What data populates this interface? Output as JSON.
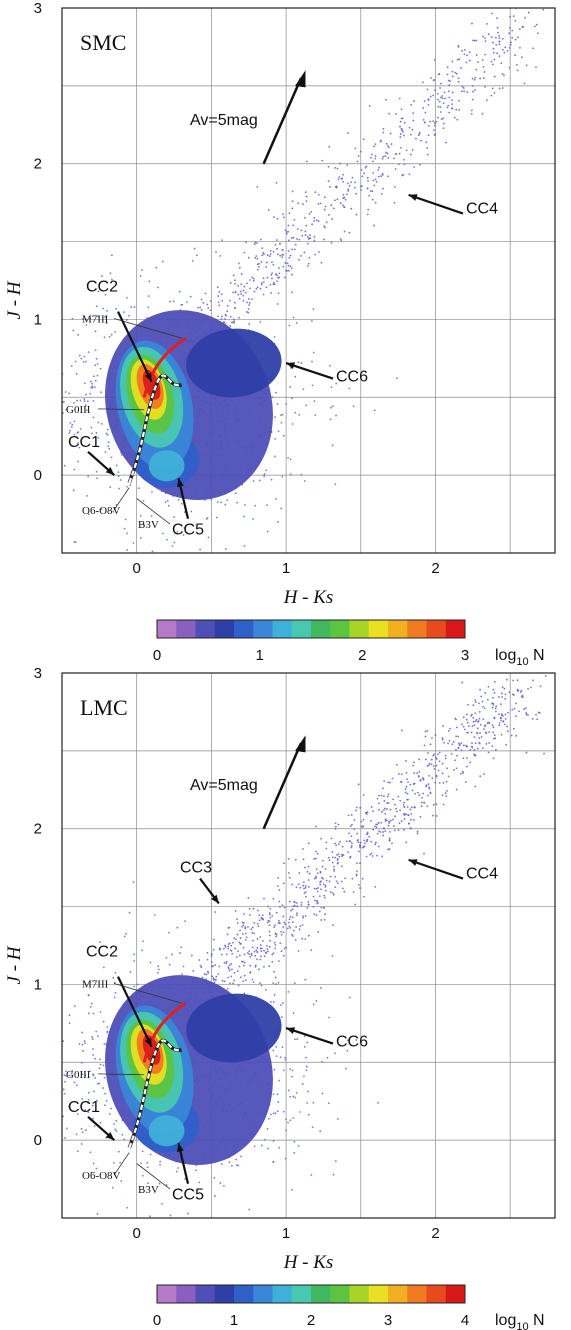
{
  "chart_data": [
    {
      "type": "heatmap",
      "panel_label": "SMC",
      "xlabel": "H - Ks",
      "ylabel": "J - H",
      "xlim": [
        -0.5,
        2.8
      ],
      "ylim": [
        -0.5,
        3.0
      ],
      "xticks": [
        "0",
        "1",
        "2"
      ],
      "yticks": [
        "0",
        "1",
        "2",
        "3"
      ],
      "grid": true,
      "colorbar": {
        "label": "log",
        "label_sub": "10",
        "label_suffix": " N",
        "min": 0,
        "max": 3,
        "ticks": [
          "0",
          "1",
          "2",
          "3"
        ],
        "colors": [
          "#b57ac8",
          "#8a5fc0",
          "#4e4fb7",
          "#2f3fa8",
          "#2f5fc8",
          "#3a86d8",
          "#3fb0d8",
          "#48c8b0",
          "#3fb860",
          "#5cc440",
          "#a8d428",
          "#e8e020",
          "#f2b020",
          "#f07a20",
          "#e84a20",
          "#d81818"
        ]
      },
      "arrow_text": "Av=5mag",
      "annotations": [
        "CC1",
        "CC2",
        "CC4",
        "CC5",
        "CC6"
      ],
      "spectral_labels": [
        "M7III",
        "G0III",
        "O6-O8V",
        "B3V"
      ],
      "density_peaks": [
        {
          "x": 0.1,
          "y": 0.55,
          "log10N": 3.0
        },
        {
          "x": 0.05,
          "y": 0.3,
          "log10N": 2.5
        },
        {
          "x": 0.2,
          "y": 0.05,
          "log10N": 1.8
        },
        {
          "x": 0.6,
          "y": 0.75,
          "log10N": 1.2
        }
      ]
    },
    {
      "type": "heatmap",
      "panel_label": "LMC",
      "xlabel": "H - Ks",
      "ylabel": "J - H",
      "xlim": [
        -0.5,
        2.8
      ],
      "ylim": [
        -0.5,
        3.0
      ],
      "xticks": [
        "0",
        "1",
        "2"
      ],
      "yticks": [
        "0",
        "1",
        "2",
        "3"
      ],
      "grid": true,
      "colorbar": {
        "label": "log",
        "label_sub": "10",
        "label_suffix": " N",
        "min": 0,
        "max": 4,
        "ticks": [
          "0",
          "1",
          "2",
          "3",
          "4"
        ],
        "colors": [
          "#b57ac8",
          "#8a5fc0",
          "#4e4fb7",
          "#2f3fa8",
          "#2f5fc8",
          "#3a86d8",
          "#3fb0d8",
          "#48c8b0",
          "#3fb860",
          "#5cc440",
          "#a8d428",
          "#e8e020",
          "#f2b020",
          "#f07a20",
          "#e84a20",
          "#d81818"
        ]
      },
      "arrow_text": "Av=5mag",
      "annotations": [
        "CC1",
        "CC2",
        "CC3",
        "CC4",
        "CC5",
        "CC6"
      ],
      "spectral_labels": [
        "M7III",
        "G0III",
        "O6-O8V",
        "B3V"
      ],
      "density_peaks": [
        {
          "x": 0.1,
          "y": 0.6,
          "log10N": 4.0
        },
        {
          "x": 0.05,
          "y": 0.3,
          "log10N": 3.2
        },
        {
          "x": 0.2,
          "y": 0.05,
          "log10N": 2.4
        },
        {
          "x": 0.7,
          "y": 0.8,
          "log10N": 1.8
        }
      ]
    }
  ]
}
